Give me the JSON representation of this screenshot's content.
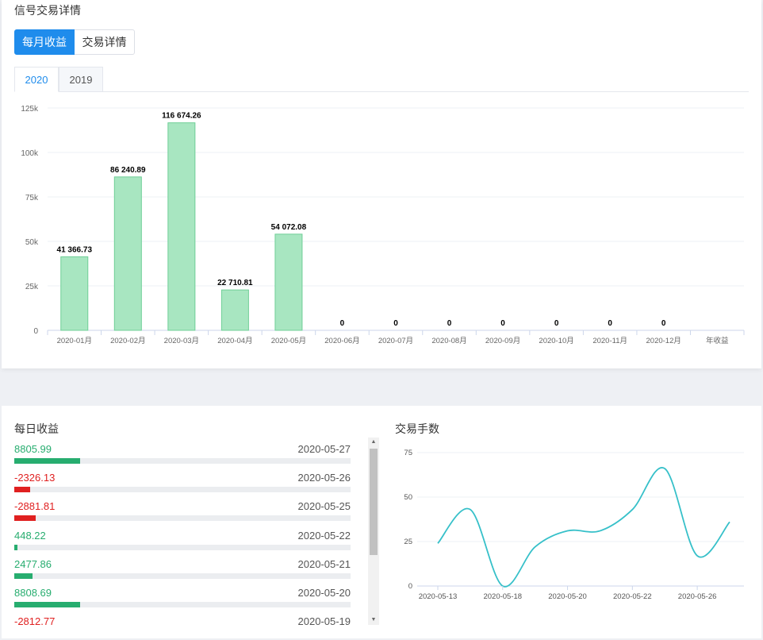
{
  "header": {
    "title": "信号交易详情"
  },
  "buttons": [
    {
      "label": "每月收益"
    },
    {
      "label": "交易详情"
    }
  ],
  "tabs": [
    {
      "label": "2020"
    },
    {
      "label": "2019"
    }
  ],
  "colors": {
    "accent": "#1f8cec",
    "bar_fill": "#a8e6c1",
    "bar_stroke": "#6fcf97",
    "positive": "#27ad6f",
    "negative": "#e02020",
    "line": "#36c0c9"
  },
  "chart_data": [
    {
      "type": "bar",
      "categories": [
        "2020-01月",
        "2020-02月",
        "2020-03月",
        "2020-04月",
        "2020-05月",
        "2020-06月",
        "2020-07月",
        "2020-08月",
        "2020-09月",
        "2020-10月",
        "2020-11月",
        "2020-12月",
        "年收益"
      ],
      "values": [
        41366.73,
        86240.89,
        116674.26,
        22710.81,
        54072.08,
        0,
        0,
        0,
        0,
        0,
        0,
        0,
        null
      ],
      "data_labels": [
        "41 366.73",
        "86 240.89",
        "116 674.26",
        "22 710.81",
        "54 072.08",
        "0",
        "0",
        "0",
        "0",
        "0",
        "0",
        "0",
        ""
      ],
      "yticks": [
        "0",
        "25k",
        "50k",
        "75k",
        "100k",
        "125k"
      ],
      "ylim": [
        0,
        125000
      ],
      "grid": true
    },
    {
      "type": "line",
      "title": "交易手数",
      "x": [
        "2020-05-13",
        "2020-05-15",
        "2020-05-18",
        "2020-05-19",
        "2020-05-20",
        "2020-05-21",
        "2020-05-22",
        "2020-05-25",
        "2020-05-26",
        "2020-05-27"
      ],
      "xticks": [
        "2020-05-13",
        "2020-05-18",
        "2020-05-20",
        "2020-05-22",
        "2020-05-26"
      ],
      "values": [
        24,
        43,
        0,
        22,
        31,
        31,
        43,
        66,
        17,
        36
      ],
      "yticks": [
        "0",
        "25",
        "50",
        "75"
      ],
      "ylim": [
        0,
        75
      ],
      "grid": true
    }
  ],
  "daily": {
    "title": "每日收益",
    "items": [
      {
        "value": "8805.99",
        "date": "2020-05-27",
        "fill": 0.195,
        "sign": "pos"
      },
      {
        "value": "-2326.13",
        "date": "2020-05-26",
        "fill": 0.048,
        "sign": "neg"
      },
      {
        "value": "-2881.81",
        "date": "2020-05-25",
        "fill": 0.064,
        "sign": "neg"
      },
      {
        "value": "448.22",
        "date": "2020-05-22",
        "fill": 0.009,
        "sign": "pos"
      },
      {
        "value": "2477.86",
        "date": "2020-05-21",
        "fill": 0.055,
        "sign": "pos"
      },
      {
        "value": "8808.69",
        "date": "2020-05-20",
        "fill": 0.195,
        "sign": "pos"
      },
      {
        "value": "-2812.77",
        "date": "2020-05-19",
        "fill": 0.062,
        "sign": "neg"
      }
    ]
  }
}
